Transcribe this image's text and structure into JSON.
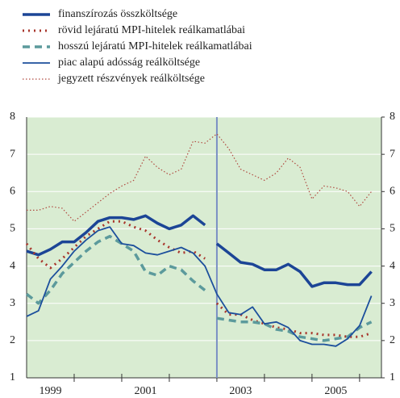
{
  "chart_data": {
    "type": "line",
    "x": [
      1999.0,
      1999.25,
      1999.5,
      1999.75,
      2000.0,
      2000.25,
      2000.5,
      2000.75,
      2001.0,
      2001.25,
      2001.5,
      2001.75,
      2002.0,
      2002.25,
      2002.5,
      2002.75,
      2003.0,
      2003.25,
      2003.5,
      2003.75,
      2004.0,
      2004.25,
      2004.5,
      2004.75,
      2005.0,
      2005.25,
      2005.5,
      2005.75,
      2006.0,
      2006.25
    ],
    "xlim": [
      1999,
      2006.46
    ],
    "xticks": [
      {
        "value": 1999.5,
        "label": "1999"
      },
      {
        "value": 2001.5,
        "label": "2001"
      },
      {
        "value": 2003.5,
        "label": "2003"
      },
      {
        "value": 2005.5,
        "label": "2005"
      }
    ],
    "year_marks": [
      2000,
      2001,
      2002,
      2003,
      2004,
      2005,
      2006
    ],
    "ylim": [
      1,
      8
    ],
    "yticks": [
      1,
      2,
      3,
      4,
      5,
      6,
      7,
      8
    ],
    "y2lim": [
      1,
      8
    ],
    "y2ticks": [
      1,
      2,
      3,
      4,
      5,
      6,
      7,
      8
    ],
    "break_at": 2003,
    "series": [
      {
        "name": "finanszírozás összköltsége",
        "color": "#1c4596",
        "width": 3.5,
        "dash": "none",
        "break": true,
        "values": [
          4.4,
          4.3,
          4.45,
          4.65,
          4.65,
          4.9,
          5.2,
          5.3,
          5.3,
          5.25,
          5.35,
          5.15,
          5.0,
          5.1,
          5.35,
          5.1,
          4.6,
          4.35,
          4.1,
          4.05,
          3.9,
          3.9,
          4.05,
          3.85,
          3.45,
          3.55,
          3.55,
          3.5,
          3.5,
          3.85
        ]
      },
      {
        "name": "rövid lejáratú MPI-hitelek reálkamatlábai",
        "color": "#a8362c",
        "width": 3,
        "dash": "2 5",
        "break": true,
        "values": [
          4.6,
          4.2,
          3.95,
          4.2,
          4.5,
          4.8,
          5.0,
          5.2,
          5.2,
          5.05,
          4.95,
          4.7,
          4.5,
          4.35,
          4.4,
          4.2,
          3.0,
          2.7,
          2.7,
          2.55,
          2.45,
          2.35,
          2.3,
          2.2,
          2.2,
          2.15,
          2.15,
          2.1,
          2.1,
          2.2
        ]
      },
      {
        "name": "hosszú lejáratú MPI-hitelek reálkamatlábai",
        "color": "#5c9a9c",
        "width": 3.5,
        "dash": "9 6",
        "break": true,
        "values": [
          3.25,
          3.0,
          3.35,
          3.8,
          4.1,
          4.4,
          4.65,
          4.8,
          4.6,
          4.4,
          3.85,
          3.75,
          4.0,
          3.9,
          3.6,
          3.35,
          2.6,
          2.55,
          2.5,
          2.5,
          2.45,
          2.3,
          2.25,
          2.1,
          2.05,
          2.0,
          2.05,
          2.1,
          2.35,
          2.5
        ]
      },
      {
        "name": "piac alapú adósság reálköltsége",
        "color": "#1c4f9c",
        "width": 1.8,
        "dash": "none",
        "break": false,
        "values": [
          2.65,
          2.8,
          3.65,
          4.0,
          4.4,
          4.7,
          4.95,
          5.05,
          4.6,
          4.55,
          4.35,
          4.3,
          4.4,
          4.5,
          4.35,
          4.0,
          3.25,
          2.75,
          2.7,
          2.9,
          2.45,
          2.5,
          2.35,
          2.0,
          1.9,
          1.9,
          1.85,
          2.05,
          2.4,
          3.2
        ]
      },
      {
        "name": "jegyzett részvények reálköltsége",
        "color": "#b04a40",
        "width": 1.2,
        "dash": "1.5 2.5",
        "break": false,
        "values": [
          5.5,
          5.5,
          5.6,
          5.55,
          5.2,
          5.45,
          5.7,
          5.95,
          6.15,
          6.3,
          6.95,
          6.65,
          6.45,
          6.6,
          7.35,
          7.3,
          7.55,
          7.15,
          6.6,
          6.45,
          6.3,
          6.5,
          6.9,
          6.65,
          5.8,
          6.15,
          6.1,
          6.0,
          5.6,
          6.0
        ]
      }
    ]
  }
}
